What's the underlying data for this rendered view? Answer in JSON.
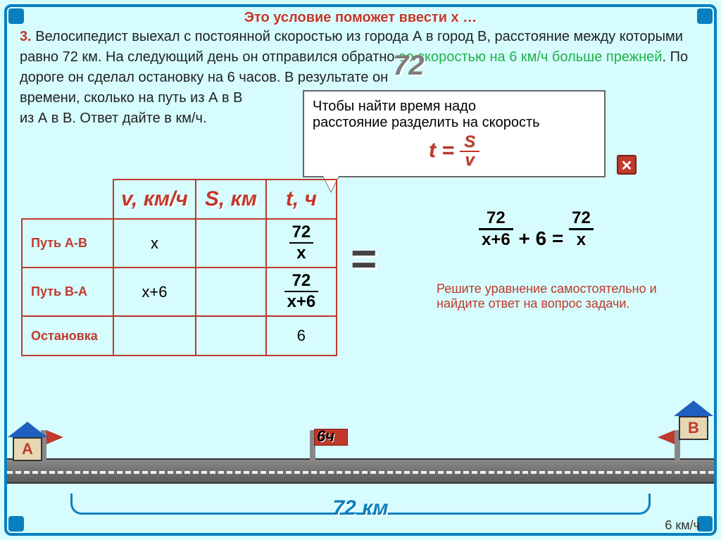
{
  "hint_top": "Это условие поможет ввести х …",
  "problem": {
    "num": "3.",
    "text1": " Велосипедист выехал с постоянной скоростью из города А в город В, расстояние между которыми равно 72 км. На следующий день он отправился обратно ",
    "green1": "со скоростью на 6 км/ч больше прежней",
    "text2": ". По дороге он сделал остановку на 6 часов. В результате он ",
    "text3": "времени, сколько на путь из А в В",
    "text4": "из А в В. Ответ дайте в км/ч.",
    "overlay72": "72"
  },
  "popup": {
    "line1": "Чтобы найти время надо",
    "line2": "расстояние разделить на скорость",
    "formula_lhs": "t = ",
    "formula_top": "S",
    "formula_bot": "v"
  },
  "table": {
    "headers": {
      "v": "v, км/ч",
      "s": "S, км",
      "t": "t, ч"
    },
    "rows": {
      "ab": {
        "label": "Путь А-В",
        "v": "x",
        "t_top": "72",
        "t_bot": "x"
      },
      "ba": {
        "label": "Путь В-А",
        "v": "x+6",
        "t_top": "72",
        "t_bot": "x+6"
      },
      "stop": {
        "label": "Остановка",
        "t": "6"
      }
    }
  },
  "bigeq": "=",
  "equation": {
    "f1_top": "72",
    "f1_bot": "x+6",
    "plus": " + 6 = ",
    "f2_top": "72",
    "f2_bot": "x"
  },
  "solve_note": "Решите уравнение самостоятельно и найдите ответ на вопрос задачи.",
  "road": {
    "distance": "72 км",
    "stop_time": "6ч",
    "house_a": "А",
    "house_b": "В",
    "speed": "6 км/ч"
  },
  "colors": {
    "background": "#d6fcfd",
    "frame": "#0a7fbf",
    "accent_red": "#c0392b",
    "accent_green": "#1fb24c",
    "road": "#6a6a6a"
  }
}
